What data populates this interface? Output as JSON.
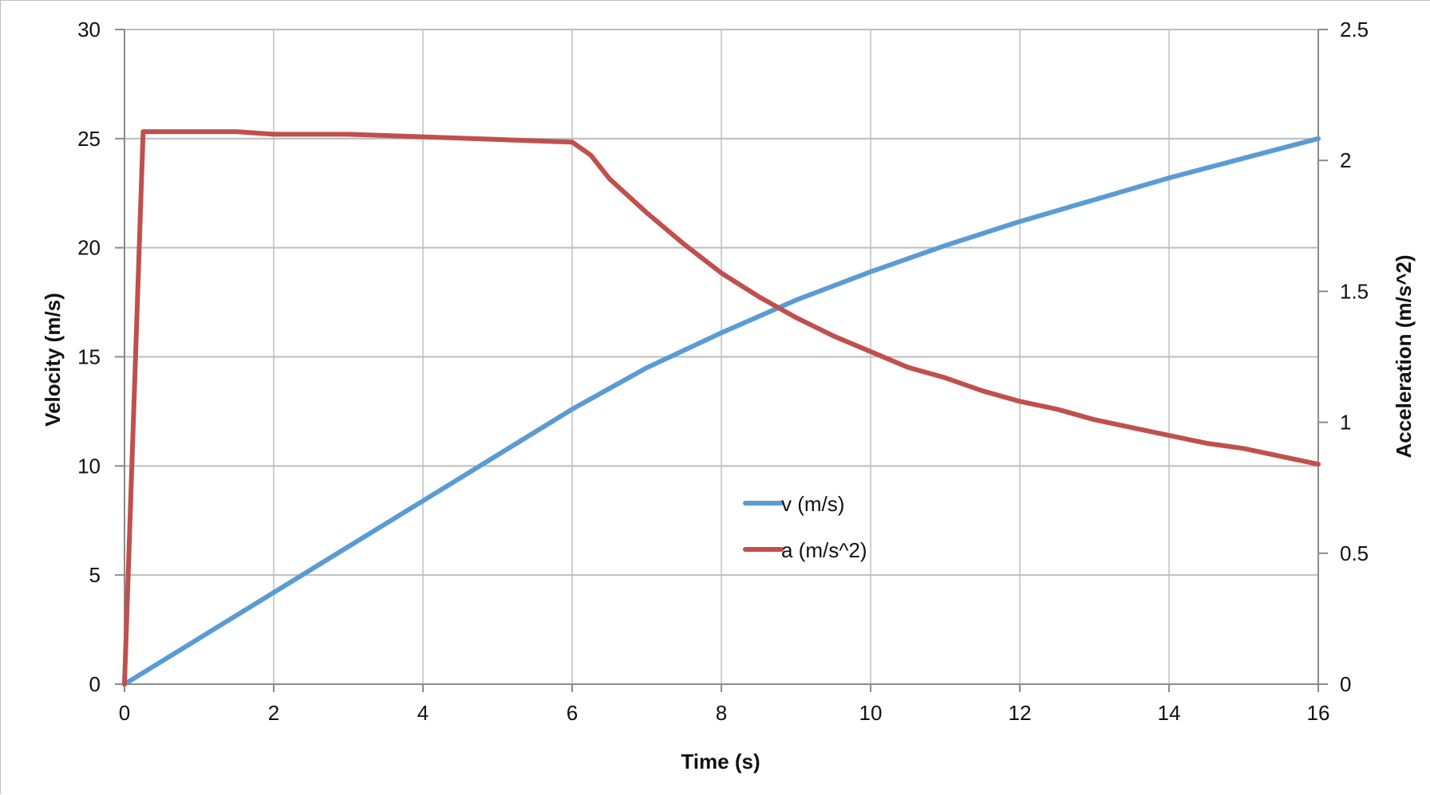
{
  "chart_data": {
    "type": "line",
    "title": "",
    "xlabel": "Time (s)",
    "ylabel": "Velocity (m/s)",
    "y2label": "Acceleration (m/s^2)",
    "xlim": [
      0,
      16
    ],
    "ylim": [
      0,
      30
    ],
    "y2lim": [
      0,
      2.5
    ],
    "x_ticks": [
      "0",
      "2",
      "4",
      "6",
      "8",
      "10",
      "12",
      "14",
      "16"
    ],
    "y_ticks": [
      "0",
      "5",
      "10",
      "15",
      "20",
      "25",
      "30"
    ],
    "y2_ticks": [
      "0",
      "0.5",
      "1",
      "1.5",
      "2",
      "2.5"
    ],
    "grid": true,
    "legend_position": "center",
    "series": [
      {
        "name": "v (m/s)",
        "axis": "left",
        "color": "#5b9bd5",
        "points": [
          [
            0,
            0
          ],
          [
            1,
            2.1
          ],
          [
            2,
            4.2
          ],
          [
            3,
            6.3
          ],
          [
            4,
            8.4
          ],
          [
            5,
            10.5
          ],
          [
            6,
            12.6
          ],
          [
            7,
            14.5
          ],
          [
            8,
            16.1
          ],
          [
            9,
            17.6
          ],
          [
            10,
            18.9
          ],
          [
            11,
            20.1
          ],
          [
            12,
            21.2
          ],
          [
            13,
            22.2
          ],
          [
            14,
            23.2
          ],
          [
            15,
            24.1
          ],
          [
            16,
            25.0
          ]
        ]
      },
      {
        "name": "a (m/s^2)",
        "axis": "right",
        "color": "#c0504d",
        "points": [
          [
            0,
            0
          ],
          [
            0.25,
            2.11
          ],
          [
            1,
            2.11
          ],
          [
            1.5,
            2.11
          ],
          [
            2,
            2.1
          ],
          [
            3,
            2.1
          ],
          [
            4,
            2.09
          ],
          [
            5,
            2.08
          ],
          [
            6,
            2.07
          ],
          [
            6.25,
            2.02
          ],
          [
            6.5,
            1.93
          ],
          [
            7,
            1.8
          ],
          [
            7.5,
            1.68
          ],
          [
            8,
            1.57
          ],
          [
            8.5,
            1.48
          ],
          [
            9,
            1.4
          ],
          [
            9.5,
            1.33
          ],
          [
            10,
            1.27
          ],
          [
            10.5,
            1.21
          ],
          [
            11,
            1.17
          ],
          [
            11.5,
            1.12
          ],
          [
            12,
            1.08
          ],
          [
            12.5,
            1.05
          ],
          [
            13,
            1.01
          ],
          [
            13.5,
            0.98
          ],
          [
            14,
            0.95
          ],
          [
            14.5,
            0.92
          ],
          [
            15,
            0.9
          ],
          [
            15.5,
            0.87
          ],
          [
            16,
            0.84
          ]
        ]
      }
    ]
  }
}
